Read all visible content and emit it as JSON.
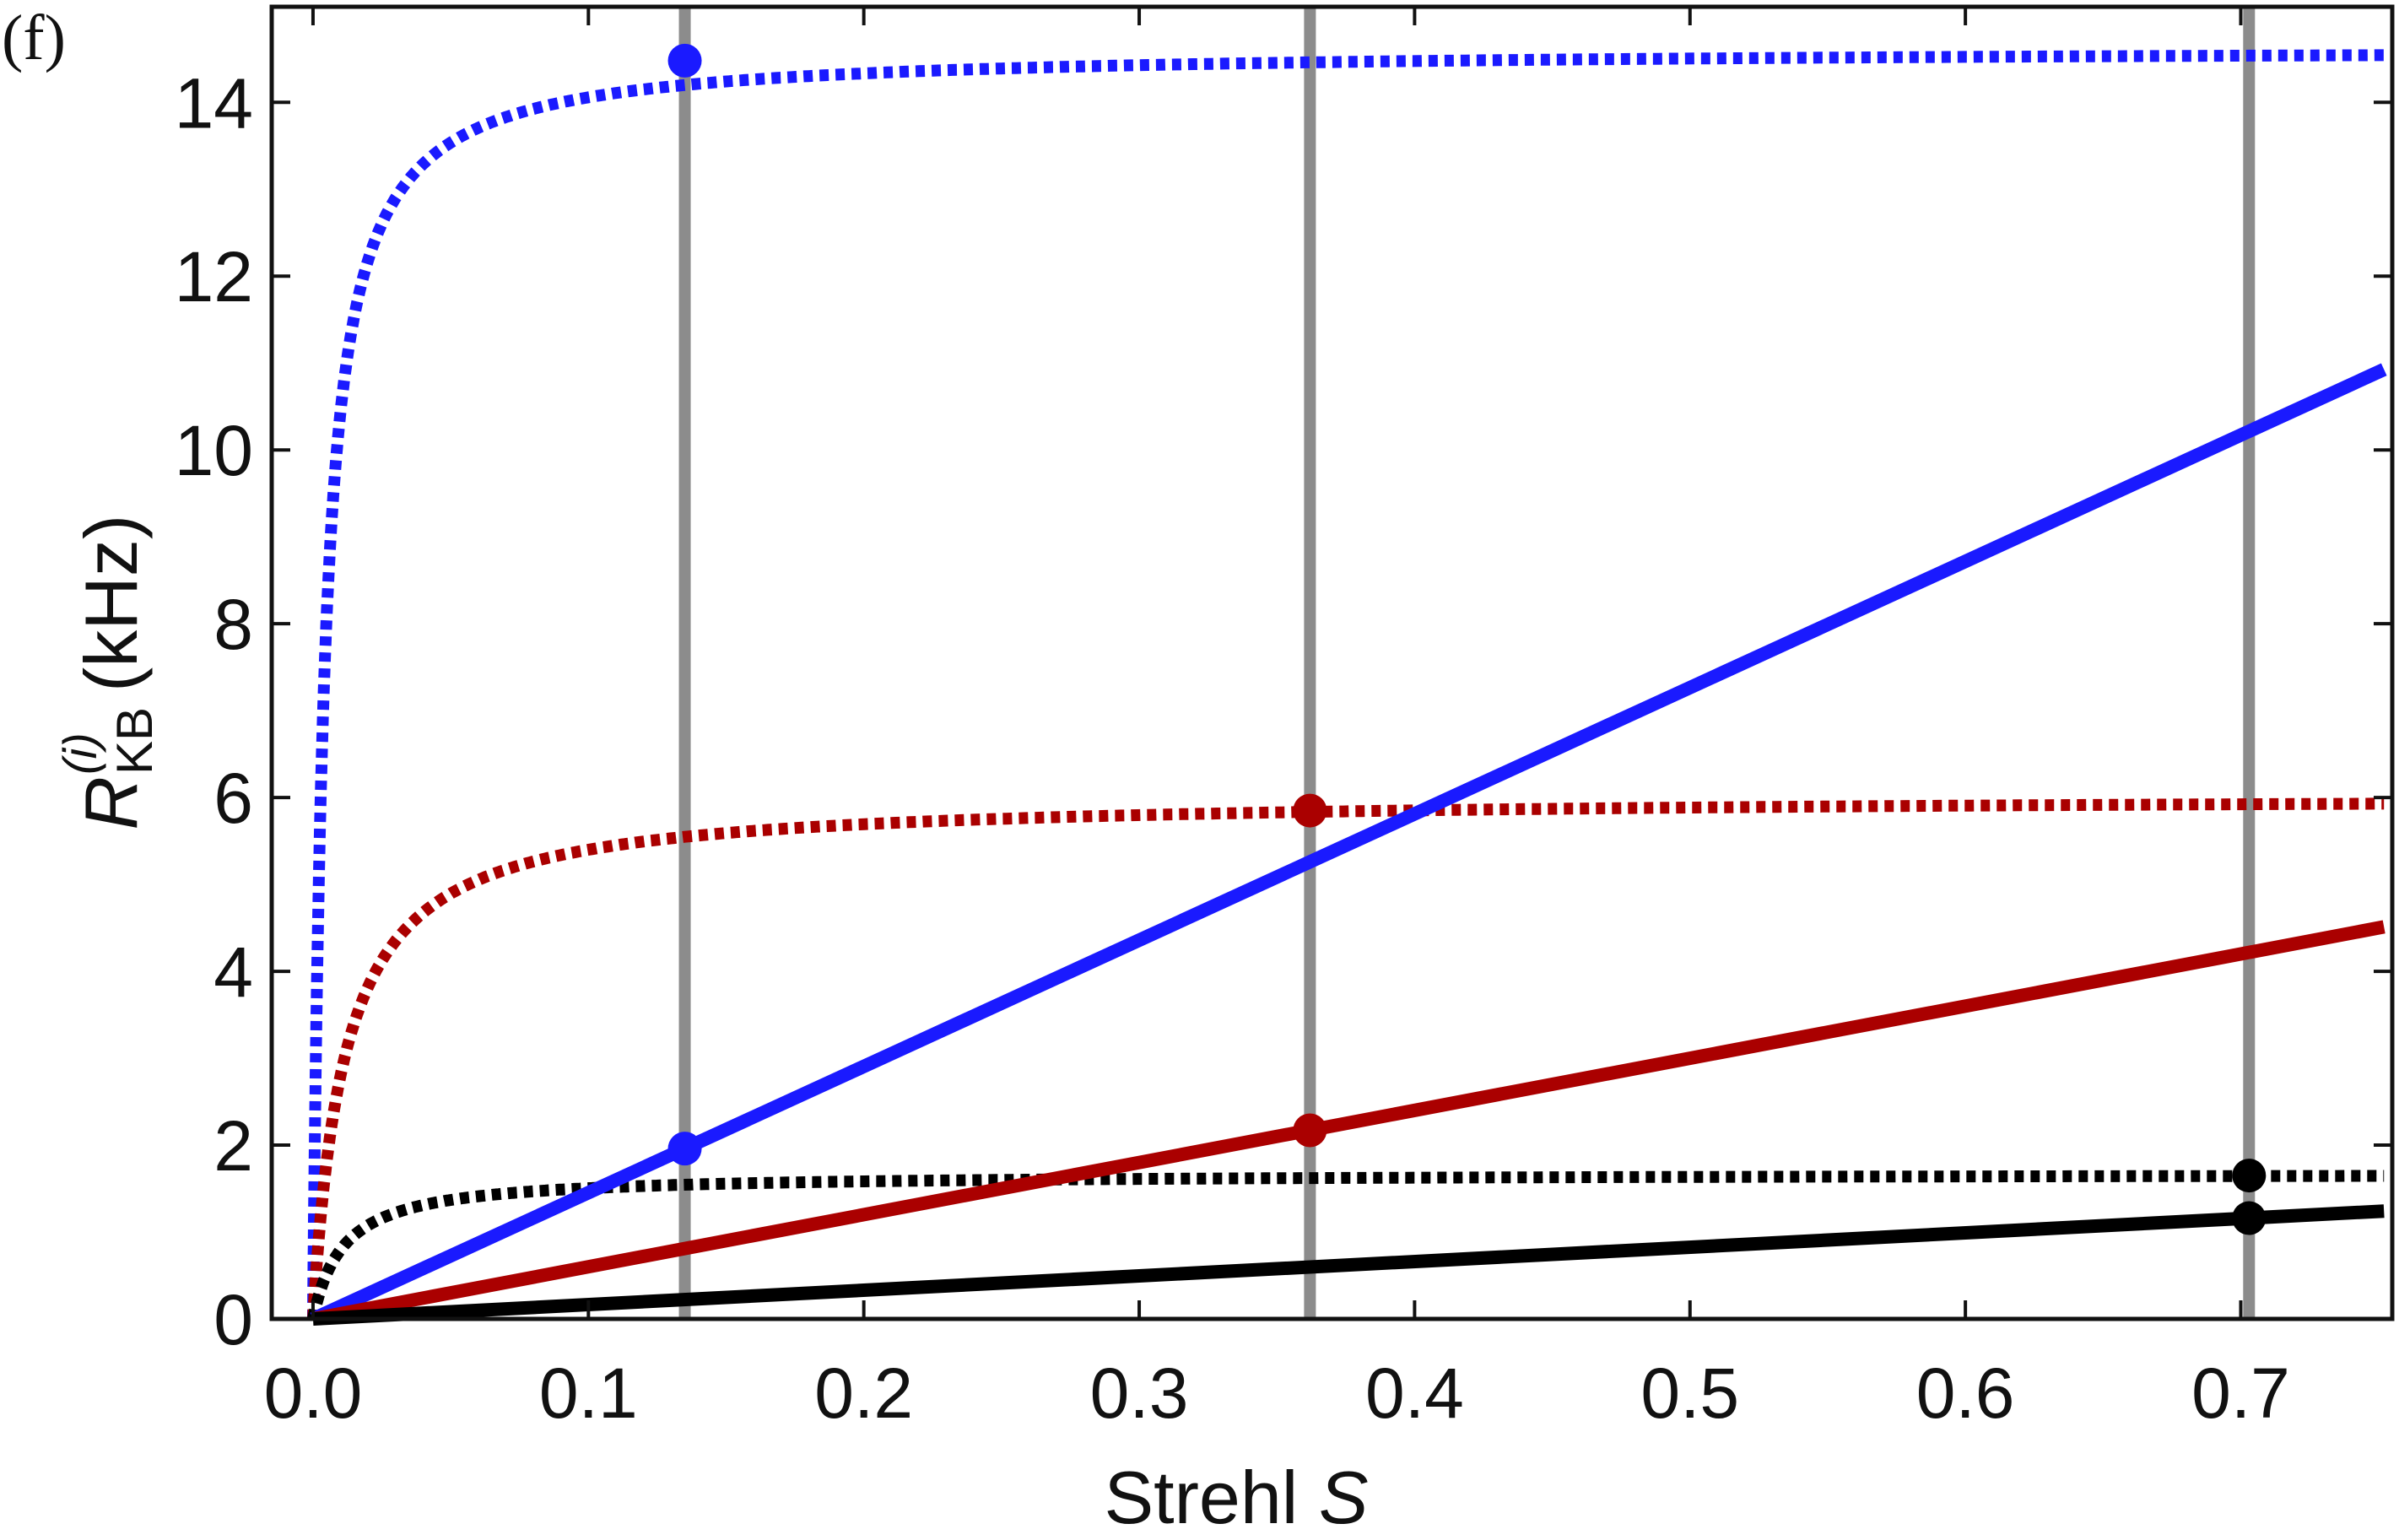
{
  "panel_label": "(f)",
  "chart_data": {
    "type": "line",
    "title": "",
    "xlabel": {
      "text": "Strehl ",
      "symbol": "S"
    },
    "ylabel": {
      "symbol": "R",
      "superscript": "(i)",
      "subscript": "KB",
      "unit": " (kHz)"
    },
    "xlim": [
      -0.015,
      0.755
    ],
    "ylim": [
      0,
      15.1
    ],
    "xticks": [
      0.0,
      0.1,
      0.2,
      0.3,
      0.4,
      0.5,
      0.6,
      0.7
    ],
    "xtick_labels": [
      "0.0",
      "0.1",
      "0.2",
      "0.3",
      "0.4",
      "0.5",
      "0.6",
      "0.7"
    ],
    "yticks": [
      0,
      2,
      4,
      6,
      8,
      10,
      12,
      14
    ],
    "ytick_labels": [
      "0",
      "2",
      "4",
      "6",
      "8",
      "10",
      "12",
      "14"
    ],
    "grid": false,
    "vertical_lines": [
      {
        "x": 0.135,
        "color": "#8c8c8c"
      },
      {
        "x": 0.362,
        "color": "#8c8c8c"
      },
      {
        "x": 0.703,
        "color": "#8c8c8c"
      }
    ],
    "series": [
      {
        "name": "blue-dotted",
        "style": "dotted",
        "color": "#1a1aff",
        "model": "saturating",
        "max": 14.62,
        "halfS": 0.004,
        "s0": 0.0,
        "x_end": 0.752
      },
      {
        "name": "red-dotted",
        "style": "dotted",
        "color": "#aa0000",
        "model": "saturating",
        "max": 6.02,
        "halfS": 0.0115,
        "s0": 0.0,
        "x_end": 0.752
      },
      {
        "name": "black-dotted",
        "style": "dotted",
        "color": "#000000",
        "model": "saturating",
        "max": 1.67,
        "halfS": 0.011,
        "s0": 0.0,
        "x_end": 0.752
      },
      {
        "name": "blue-solid",
        "style": "solid",
        "color": "#1a1aff",
        "model": "linear",
        "slope": 14.53,
        "intercept": 0.0,
        "x_start": 0.0,
        "x_end": 0.752
      },
      {
        "name": "red-solid",
        "style": "solid",
        "color": "#aa0000",
        "model": "linear",
        "slope": 6.0,
        "intercept": 0.0,
        "x_start": 0.0,
        "x_end": 0.752
      },
      {
        "name": "black-solid",
        "style": "solid",
        "color": "#000000",
        "model": "linear",
        "slope": 1.65,
        "intercept": 0.0,
        "x_start": 0.0,
        "x_end": 0.752
      }
    ],
    "markers": [
      {
        "name": "blue-dotted-marker",
        "x": 0.135,
        "y": 14.48,
        "color": "#1a1aff"
      },
      {
        "name": "blue-solid-marker",
        "x": 0.135,
        "y": 1.96,
        "color": "#1a1aff"
      },
      {
        "name": "red-dotted-marker",
        "x": 0.362,
        "y": 5.85,
        "color": "#aa0000"
      },
      {
        "name": "red-solid-marker",
        "x": 0.362,
        "y": 2.17,
        "color": "#aa0000"
      },
      {
        "name": "black-dotted-marker",
        "x": 0.703,
        "y": 1.65,
        "color": "#000000"
      },
      {
        "name": "black-solid-marker",
        "x": 0.703,
        "y": 1.16,
        "color": "#000000"
      }
    ]
  }
}
